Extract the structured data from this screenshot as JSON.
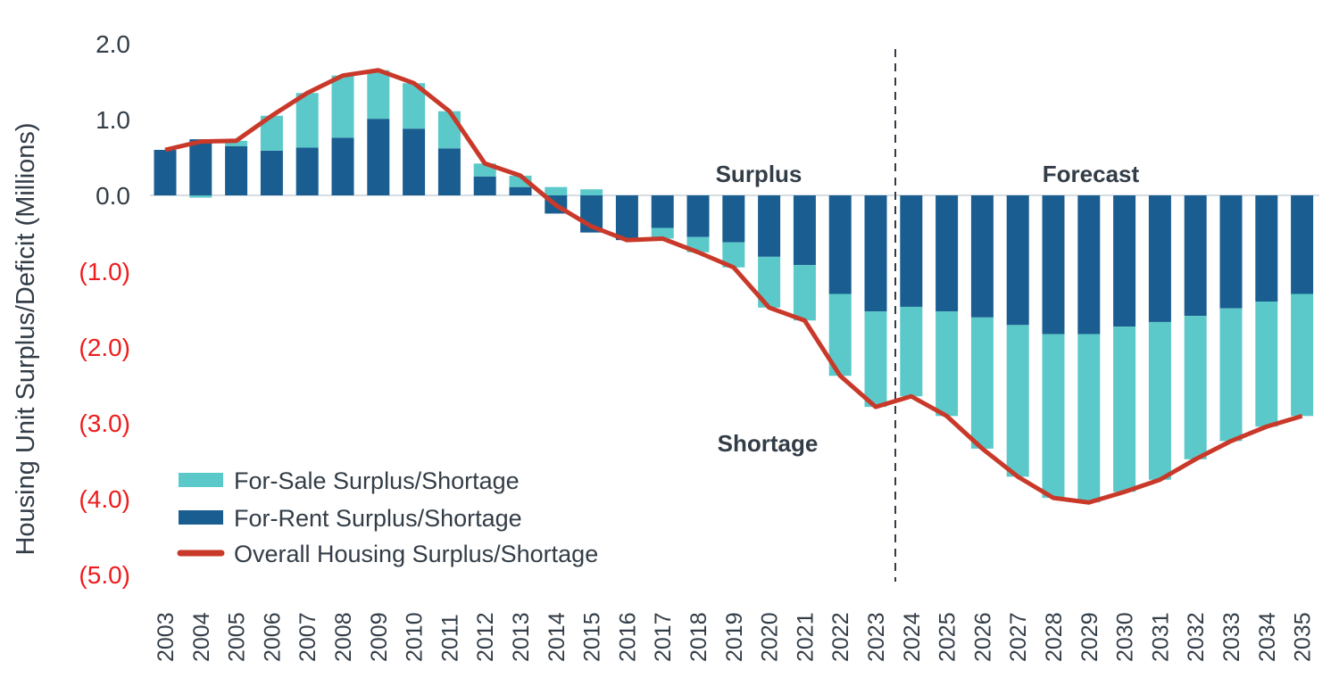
{
  "chart_data": {
    "type": "bar",
    "stacked": true,
    "ylabel": "Housing Unit Surplus/Deficit (Millions)",
    "ylim": [
      -5,
      2
    ],
    "yticks": [
      2,
      1,
      0,
      -1,
      -2,
      -3,
      -4,
      -5
    ],
    "ytick_labels": [
      "2.0",
      "1.0",
      "0.0",
      "(1.0)",
      "(2.0)",
      "(3.0)",
      "(4.0)",
      "(5.0)"
    ],
    "negative_tick_color": "#ee1c1c",
    "grid": false,
    "legend_position": "bottom-left",
    "categories": [
      "2003",
      "2004",
      "2005",
      "2006",
      "2007",
      "2008",
      "2009",
      "2010",
      "2011",
      "2012",
      "2013",
      "2014",
      "2015",
      "2016",
      "2017",
      "2018",
      "2019",
      "2020",
      "2021",
      "2022",
      "2023",
      "2024",
      "2025",
      "2026",
      "2027",
      "2028",
      "2029",
      "2030",
      "2031",
      "2032",
      "2033",
      "2034",
      "2035"
    ],
    "series": [
      {
        "name": "For-Sale Surplus/Shortage",
        "kind": "bar",
        "color": "#5bc9c9",
        "values": [
          0,
          -0.03,
          0.07,
          0.46,
          0.72,
          0.82,
          0.64,
          0.6,
          0.49,
          0.17,
          0.15,
          0.11,
          0.08,
          0,
          -0.14,
          -0.2,
          -0.33,
          -0.67,
          -0.73,
          -1.08,
          -1.26,
          -1.18,
          -1.38,
          -1.73,
          -2.0,
          -2.16,
          -2.22,
          -2.18,
          -2.08,
          -1.89,
          -1.75,
          -1.65,
          -1.61
        ]
      },
      {
        "name": "For-Rent Surplus/Shortage",
        "kind": "bar",
        "color": "#1a5e91",
        "values": [
          0.6,
          0.74,
          0.65,
          0.59,
          0.63,
          0.76,
          1.01,
          0.88,
          0.62,
          0.25,
          0.11,
          -0.24,
          -0.49,
          -0.59,
          -0.43,
          -0.55,
          -0.62,
          -0.81,
          -0.92,
          -1.3,
          -1.53,
          -1.47,
          -1.53,
          -1.61,
          -1.71,
          -1.83,
          -1.83,
          -1.73,
          -1.67,
          -1.59,
          -1.49,
          -1.4,
          -1.3
        ]
      },
      {
        "name": "Overall Housing Surplus/Shortage",
        "kind": "line",
        "color": "#c9392a",
        "values": [
          0.6,
          0.71,
          0.72,
          1.05,
          1.35,
          1.58,
          1.65,
          1.48,
          1.11,
          0.42,
          0.26,
          -0.13,
          -0.41,
          -0.59,
          -0.57,
          -0.75,
          -0.95,
          -1.48,
          -1.65,
          -2.38,
          -2.79,
          -2.65,
          -2.91,
          -3.34,
          -3.71,
          -3.99,
          -4.05,
          -3.91,
          -3.75,
          -3.48,
          -3.24,
          -3.05,
          -2.91
        ]
      }
    ],
    "forecast_divider_between": [
      "2023",
      "2024"
    ],
    "annotations": {
      "surplus": "Surplus",
      "shortage": "Shortage",
      "forecast": "Forecast"
    }
  }
}
